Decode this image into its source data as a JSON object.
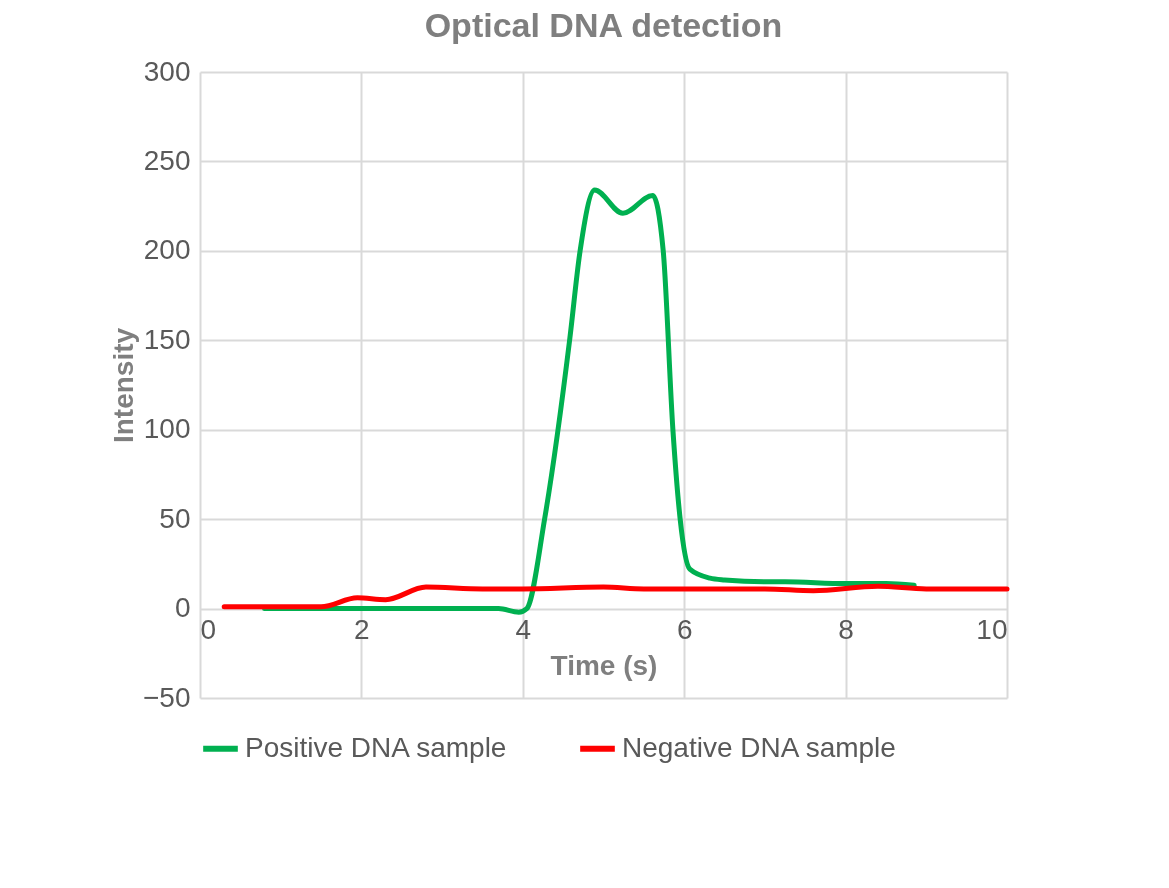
{
  "chart_data": {
    "type": "line",
    "title": "Optical DNA  detection",
    "xlabel": "Time (s)",
    "ylabel": "Intensity",
    "xlim": [
      0,
      10
    ],
    "xticks": [
      0,
      2,
      4,
      6,
      8,
      10
    ],
    "ylim": [
      -50,
      300
    ],
    "yticks": [
      -50,
      0,
      50,
      100,
      150,
      200,
      250,
      300
    ],
    "grid": true,
    "legend": "bottom",
    "series": [
      {
        "name": "Positive DNA sample",
        "color": "#00b050",
        "x": [
          0.8,
          1.5,
          2.5,
          3.5,
          3.7,
          3.95,
          4.05,
          4.27,
          4.58,
          4.71,
          4.89,
          5.24,
          5.61,
          5.74,
          5.86,
          5.95,
          6.07,
          6.32,
          6.5,
          7,
          7.25,
          8,
          8.5,
          8.85
        ],
        "values": [
          0,
          0,
          0,
          0,
          0,
          -2,
          0,
          50,
          150,
          200,
          234,
          221,
          231,
          200,
          100,
          50,
          22,
          17,
          16,
          15,
          15,
          14,
          14,
          13
        ]
      },
      {
        "name": "Negative DNA sample",
        "color": "#ff0000",
        "x": [
          0.3,
          1,
          1.5,
          1.95,
          2.3,
          2.8,
          3.5,
          4,
          5,
          5.5,
          7,
          7.6,
          8.4,
          9,
          10
        ],
        "values": [
          1,
          1,
          1,
          6,
          5,
          12,
          11,
          11,
          12,
          11,
          11,
          10,
          12.5,
          11,
          11
        ]
      }
    ]
  }
}
